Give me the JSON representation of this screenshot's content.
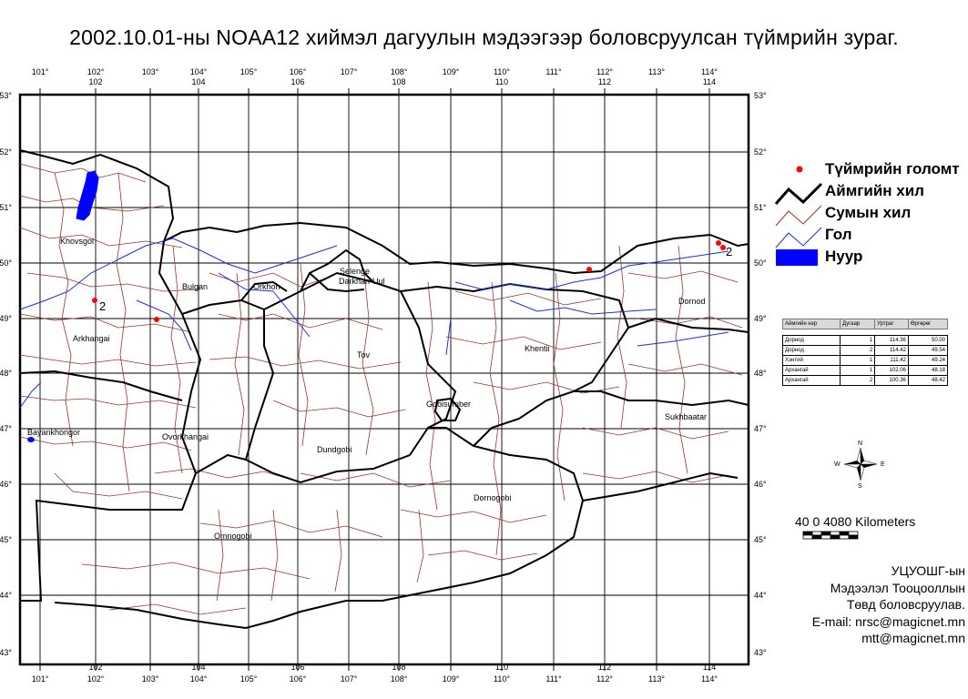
{
  "title": "2002.10.01-ны NOAA12 хиймэл дагуулын мэдээгээр боловсруулсан түймрийн зураг.",
  "grid": {
    "lon_ticks": [
      "101°",
      "102°",
      "103°",
      "104°",
      "105°",
      "106°",
      "107°",
      "108°",
      "109°",
      "110°",
      "111°",
      "112°",
      "113°",
      "114°"
    ],
    "lon_numbers": [
      "102",
      "104",
      "106",
      "108",
      "110",
      "112",
      "114"
    ],
    "lat_ticks": [
      "53°",
      "52°",
      "51°",
      "50°",
      "49°",
      "48°",
      "47°",
      "46°",
      "45°",
      "44°",
      "43°"
    ]
  },
  "map_labels": {
    "khovsgol": "Khovsgol",
    "bulgan": "Bulgan",
    "arkhangai": "Arkhangai",
    "bayankhongor": "Bayankhongor",
    "ovorkhangai": "Ovorkhangai",
    "selenge": "Selenge",
    "darkhan_uul": "Darkhan-Uul",
    "orkhon": "Orkhon",
    "tov": "Tov",
    "khentii": "Khentii",
    "dornod": "Dornod",
    "gobisumber": "Gobisumber",
    "dundgobi": "Dundgobi",
    "dornogobi": "Dornogobi",
    "sukhbaatar": "Sukhbaatar",
    "omnogobi": "Omnogobi"
  },
  "fire_labels": {
    "arkhangai_2": "2",
    "dornod_2": "2"
  },
  "legend": {
    "fire": "Түймрийн голомт",
    "aimag": "Аймгийн хил",
    "sum": "Сумын хил",
    "river": "Гол",
    "lake": "Нуур"
  },
  "table": {
    "headers": [
      "Аймгийн нэр",
      "Дугаар",
      "Уртраг",
      "Өргөрөг"
    ],
    "rows": [
      [
        "Дорнод",
        "1",
        "114.36",
        "50.00"
      ],
      [
        "Дорнод",
        "2",
        "114.42",
        "49.54"
      ],
      [
        "Хэнтий",
        "1",
        "111.42",
        "49.24"
      ],
      [
        "Архангай",
        "1",
        "102.06",
        "48.18"
      ],
      [
        "Архангай",
        "2",
        "100.36",
        "48.42"
      ]
    ]
  },
  "compass": {
    "n": "N",
    "s": "S",
    "e": "E",
    "w": "W"
  },
  "scale": {
    "label": "40 0 4080  Kilometers"
  },
  "credits": {
    "line1": "УЦУОШГ-ын",
    "line2": "Мэдээлэл Тооцооллын",
    "line3": "Төвд боловсруулав.",
    "line4": "E-mail: nrsc@magicnet.mn",
    "line5": "mtt@magicnet.mn"
  },
  "colors": {
    "aimag_border": "#000000",
    "sum_border": "#8b3a2a",
    "river": "#1f2fd0",
    "lake": "#0000ff",
    "fire": "#ff0000"
  }
}
